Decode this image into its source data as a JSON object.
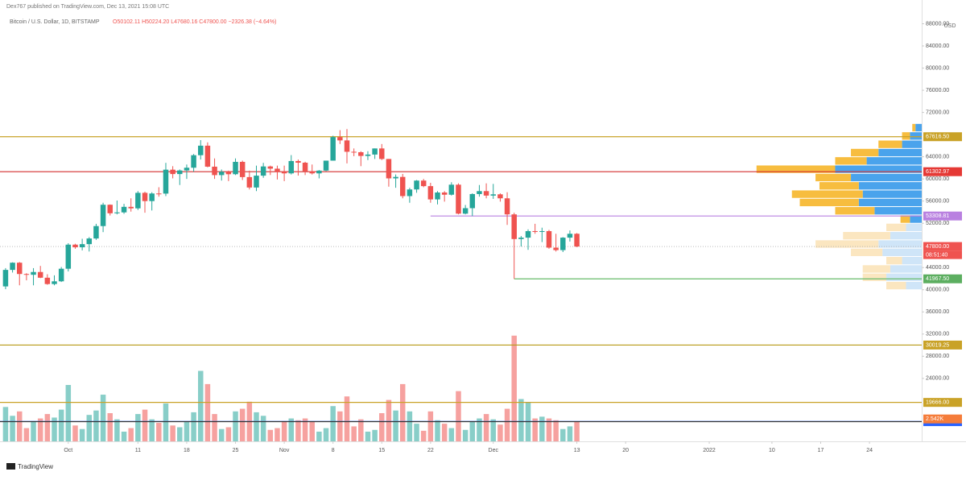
{
  "chart_data": {
    "type": "candlestick",
    "header": "Dex767 published on TradingView.com, Dec 13, 2021 15:08 UTC",
    "title": "Bitcoin / U.S. Dollar, 1D, BITSTAMP",
    "ohlc_label": "O50102.11 H50224.20 L47680.16 C47800.00 −2326.38 (−4.64%)",
    "currency": "USD",
    "brand": "TradingView",
    "up_color": "#26a69a",
    "down_color": "#ef5350",
    "open": [
      40600,
      43580,
      44880,
      42840,
      42700,
      43200,
      42170,
      41030,
      41520,
      43790,
      48140,
      47660,
      48230,
      49250,
      51490,
      55340,
      53800,
      53960,
      54960,
      54690,
      57490,
      56000,
      57370,
      57350,
      61670,
      60880,
      61530,
      62020,
      64280,
      66000,
      62210,
      60690,
      61300,
      60850,
      63080,
      60330,
      58450,
      60590,
      62250,
      61850,
      61300,
      61000,
      63230,
      62930,
      61400,
      61000,
      61500,
      63300,
      67550,
      66950,
      64900,
      64820,
      64150,
      64400,
      65500,
      63600,
      60100,
      60360,
      56900,
      58100,
      59700,
      58700,
      56300,
      57550,
      57150,
      58960,
      53730,
      54720,
      57270,
      57800,
      56990,
      57220,
      56500,
      53600,
      49150,
      49400,
      50580,
      50500,
      50580,
      47600,
      47150,
      49400,
      50102.11
    ],
    "high": [
      43900,
      44950,
      45000,
      42990,
      43900,
      44300,
      42800,
      42600,
      44100,
      48400,
      48300,
      49200,
      49500,
      51900,
      55700,
      55400,
      56100,
      55500,
      56500,
      57800,
      57700,
      57600,
      58500,
      62900,
      62300,
      61700,
      62600,
      64500,
      67000,
      66600,
      63700,
      61700,
      61500,
      63700,
      63300,
      61500,
      62400,
      62900,
      62400,
      62400,
      62400,
      64300,
      63500,
      63100,
      62600,
      61600,
      63300,
      67800,
      68800,
      69000,
      65500,
      65000,
      65000,
      65500,
      66300,
      63600,
      60800,
      60900,
      58400,
      59800,
      60000,
      59300,
      57800,
      57800,
      59400,
      59200,
      55300,
      57400,
      58900,
      59200,
      59100,
      57400,
      57600,
      53900,
      49700,
      50900,
      51900,
      51200,
      50800,
      50100,
      49500,
      50700,
      50224.2
    ],
    "low": [
      40100,
      43100,
      40800,
      41700,
      40800,
      42100,
      40900,
      40800,
      41400,
      43300,
      47400,
      47100,
      46900,
      49000,
      50400,
      53400,
      53600,
      53700,
      54100,
      54400,
      53900,
      54300,
      56800,
      56900,
      60100,
      58900,
      60000,
      61300,
      63500,
      62100,
      60000,
      59700,
      59600,
      60700,
      59800,
      58100,
      57800,
      60200,
      60700,
      59900,
      59600,
      60800,
      60600,
      60700,
      60800,
      60100,
      61400,
      63300,
      66300,
      62800,
      64100,
      62300,
      63400,
      63600,
      63400,
      58600,
      58400,
      56500,
      55700,
      57500,
      58500,
      55700,
      55400,
      55900,
      57000,
      53600,
      53600,
      53300,
      56800,
      56500,
      56400,
      55900,
      51700,
      41967.5,
      47800,
      47200,
      50100,
      48600,
      47400,
      46900,
      46800,
      48700,
      47680.16
    ],
    "close": [
      43580,
      44880,
      42840,
      42700,
      43200,
      42170,
      41030,
      41520,
      43790,
      48140,
      47660,
      48230,
      49250,
      51490,
      55340,
      53800,
      53960,
      54960,
      54690,
      57490,
      56000,
      57370,
      57350,
      61670,
      60880,
      61530,
      62020,
      64280,
      66000,
      62210,
      60690,
      61300,
      60850,
      63080,
      60330,
      58450,
      60590,
      62250,
      61850,
      61300,
      61000,
      63230,
      62930,
      61400,
      61000,
      61500,
      63300,
      67550,
      66950,
      64900,
      64820,
      64150,
      64400,
      65500,
      63600,
      60100,
      60360,
      56900,
      58100,
      59700,
      58700,
      56300,
      57550,
      57150,
      58960,
      53730,
      54720,
      57270,
      57800,
      56990,
      57220,
      56500,
      53600,
      49150,
      49400,
      50580,
      50500,
      50580,
      47600,
      47150,
      49400,
      50100,
      47800
    ],
    "volume": [
      3900,
      2900,
      3400,
      1500,
      2300,
      2600,
      3100,
      2700,
      3600,
      6400,
      1800,
      1400,
      3000,
      3500,
      5300,
      3200,
      2500,
      1100,
      1500,
      3100,
      3600,
      2500,
      2100,
      4300,
      1800,
      1600,
      2200,
      3300,
      8000,
      6500,
      3100,
      1400,
      1600,
      3400,
      3700,
      4500,
      3300,
      2900,
      1300,
      1500,
      2300,
      2600,
      2400,
      2600,
      2200,
      1100,
      1500,
      4000,
      3400,
      5100,
      1700,
      2500,
      1100,
      1300,
      3200,
      4700,
      3500,
      6500,
      3400,
      2000,
      1200,
      3400,
      2400,
      2000,
      1500,
      5700,
      1300,
      2200,
      2600,
      3100,
      2500,
      1900,
      3700,
      12000,
      4800,
      4400,
      2600,
      2800,
      2600,
      2400,
      1400,
      1700,
      2200
    ],
    "volume_lim": [
      0,
      12800
    ],
    "volume_ma_label": {
      "value": 2542,
      "label": "2.542K",
      "color": "#f57c3a"
    },
    "xlim": [
      -0.8,
      131.5
    ],
    "xticks": [
      {
        "value": 9,
        "label": "Oct"
      },
      {
        "value": 19,
        "label": "11"
      },
      {
        "value": 26,
        "label": "18"
      },
      {
        "value": 33,
        "label": "25"
      },
      {
        "value": 40,
        "label": "Nov"
      },
      {
        "value": 47,
        "label": "8"
      },
      {
        "value": 54,
        "label": "15"
      },
      {
        "value": 61,
        "label": "22"
      },
      {
        "value": 70,
        "label": "Dec"
      },
      {
        "value": 82,
        "label": "13"
      },
      {
        "value": 89,
        "label": "20"
      },
      {
        "value": 101,
        "label": "2022"
      },
      {
        "value": 110,
        "label": "10"
      },
      {
        "value": 117,
        "label": "17"
      },
      {
        "value": 124,
        "label": "24"
      }
    ],
    "ylim": [
      12640,
      92290
    ],
    "yticks": [
      {
        "value": 88000,
        "label": "88000.00"
      },
      {
        "value": 84000,
        "label": "84000.00"
      },
      {
        "value": 80000,
        "label": "80000.00"
      },
      {
        "value": 76000,
        "label": "76000.00"
      },
      {
        "value": 72000,
        "label": "72000.00"
      },
      {
        "value": 64000,
        "label": "64000.00"
      },
      {
        "value": 60000,
        "label": "60000.00"
      },
      {
        "value": 56000,
        "label": "56000.00"
      },
      {
        "value": 52000,
        "label": "52000.00"
      },
      {
        "value": 44000,
        "label": "44000.00"
      },
      {
        "value": 40000,
        "label": "40000.00"
      },
      {
        "value": 36000,
        "label": "36000.00"
      },
      {
        "value": 32000,
        "label": "32000.00"
      },
      {
        "value": 28000,
        "label": "28000.00"
      },
      {
        "value": 24000,
        "label": "24000.00"
      }
    ],
    "levels": [
      {
        "value": 67616.5,
        "label": "67616.50",
        "color": "#c9a227",
        "label_color": "#c9a227"
      },
      {
        "value": 61302.97,
        "label": "61302.97",
        "color": "#d32f2f",
        "label_color": "#e53935"
      },
      {
        "value": 53308.81,
        "label": "53308.81",
        "color": "#b980e0",
        "label_color": "#b980e0",
        "from": 61
      },
      {
        "value": 41967.5,
        "label": "41967.50",
        "color": "#66bb6a",
        "label_color": "#5cae60",
        "from": 73
      },
      {
        "value": 30019.25,
        "label": "30019.25",
        "color": "#b79a16",
        "label_color": "#c9a227"
      },
      {
        "value": 19666,
        "label": "19666.00",
        "color": "#c9a227",
        "label_color": "#c9a227"
      },
      {
        "value": 16238,
        "label": "16238.00",
        "color": "#4a72d8",
        "label_color": "#1e5e2d"
      },
      {
        "value": 16193.76,
        "label": "16193.76",
        "color": "#333333",
        "label_color": "#2962ff"
      }
    ],
    "last_price": {
      "value": 47800,
      "label": "47800.00",
      "countdown": "08:51:40",
      "color": "#ef5350"
    },
    "volume_profile": {
      "bins": [
        40000,
        41500,
        43000,
        44500,
        46000,
        47500,
        49000,
        50500,
        52000,
        53500,
        55000,
        56500,
        58000,
        59500,
        61000,
        62500,
        64000,
        65500,
        67000,
        68500,
        70000
      ],
      "up": [
        20,
        45,
        40,
        25,
        50,
        55,
        40,
        20,
        15,
        60,
        80,
        75,
        80,
        90,
        110,
        70,
        55,
        25,
        15,
        8
      ],
      "down": [
        25,
        30,
        35,
        20,
        40,
        80,
        60,
        25,
        12,
        50,
        75,
        90,
        50,
        45,
        100,
        40,
        35,
        30,
        10,
        4
      ],
      "lim": [
        0,
        220
      ],
      "value_area": [
        52000,
        70000
      ],
      "up_color": "#4aa3ec",
      "down_color": "#f7bd3f",
      "faded_up_color": "#cfe5f8",
      "faded_down_color": "#fbe6c0"
    }
  }
}
